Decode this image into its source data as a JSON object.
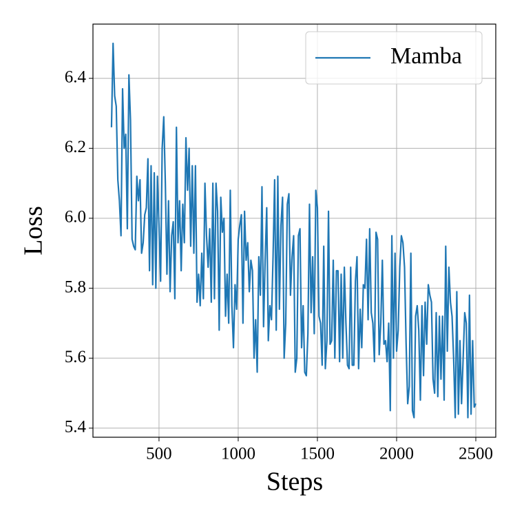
{
  "chart_data": {
    "type": "line",
    "xlabel": "Steps",
    "ylabel": "Loss",
    "x": [
      200,
      210,
      220,
      230,
      240,
      250,
      260,
      270,
      280,
      290,
      300,
      310,
      320,
      330,
      340,
      350,
      360,
      370,
      380,
      390,
      400,
      410,
      420,
      430,
      440,
      450,
      460,
      470,
      480,
      490,
      500,
      510,
      520,
      530,
      540,
      550,
      560,
      570,
      580,
      590,
      600,
      610,
      620,
      630,
      640,
      650,
      660,
      670,
      680,
      690,
      700,
      710,
      720,
      730,
      740,
      750,
      760,
      770,
      780,
      790,
      800,
      810,
      820,
      830,
      840,
      850,
      860,
      870,
      880,
      890,
      900,
      910,
      920,
      930,
      940,
      950,
      960,
      970,
      980,
      990,
      1000,
      1010,
      1020,
      1030,
      1040,
      1050,
      1060,
      1070,
      1080,
      1090,
      1100,
      1110,
      1120,
      1130,
      1140,
      1150,
      1160,
      1170,
      1180,
      1190,
      1200,
      1210,
      1220,
      1230,
      1240,
      1250,
      1260,
      1270,
      1280,
      1290,
      1300,
      1310,
      1320,
      1330,
      1340,
      1350,
      1360,
      1370,
      1380,
      1390,
      1400,
      1410,
      1420,
      1430,
      1440,
      1450,
      1460,
      1470,
      1480,
      1490,
      1500,
      1510,
      1520,
      1530,
      1540,
      1550,
      1560,
      1570,
      1580,
      1590,
      1600,
      1610,
      1620,
      1630,
      1640,
      1650,
      1660,
      1670,
      1680,
      1690,
      1700,
      1710,
      1720,
      1730,
      1740,
      1750,
      1760,
      1770,
      1780,
      1790,
      1800,
      1810,
      1820,
      1830,
      1840,
      1850,
      1860,
      1870,
      1880,
      1890,
      1900,
      1910,
      1920,
      1930,
      1940,
      1950,
      1960,
      1970,
      1980,
      1990,
      2000,
      2010,
      2020,
      2030,
      2040,
      2050,
      2060,
      2070,
      2080,
      2090,
      2100,
      2110,
      2120,
      2130,
      2140,
      2150,
      2160,
      2170,
      2180,
      2190,
      2200,
      2210,
      2220,
      2230,
      2240,
      2250,
      2260,
      2270,
      2280,
      2290,
      2300,
      2310,
      2320,
      2330,
      2340,
      2350,
      2360,
      2370,
      2380,
      2390,
      2400,
      2410,
      2420,
      2430,
      2440,
      2450,
      2460,
      2470,
      2480,
      2490,
      2500
    ],
    "series": [
      {
        "name": "Mamba",
        "color": "#1f77b4",
        "values": [
          6.26,
          6.5,
          6.35,
          6.32,
          6.11,
          6.05,
          5.95,
          6.37,
          6.2,
          6.24,
          5.97,
          6.41,
          6.28,
          5.94,
          5.92,
          5.91,
          6.12,
          6.05,
          6.11,
          5.9,
          5.93,
          6.01,
          6.03,
          6.17,
          5.85,
          6.15,
          5.81,
          6.13,
          5.8,
          6.12,
          5.98,
          5.82,
          6.2,
          6.29,
          6.1,
          5.84,
          6.05,
          5.79,
          5.95,
          5.99,
          5.77,
          6.26,
          5.93,
          6.05,
          5.85,
          6.04,
          5.93,
          6.23,
          6.08,
          6.2,
          5.92,
          6.15,
          5.9,
          6.15,
          5.76,
          5.84,
          5.75,
          5.9,
          5.77,
          6.1,
          5.95,
          5.86,
          5.97,
          5.76,
          6.1,
          5.77,
          6.1,
          6.02,
          5.68,
          6.06,
          5.96,
          6.0,
          5.72,
          5.84,
          5.7,
          6.08,
          5.75,
          5.63,
          5.81,
          5.74,
          5.94,
          5.98,
          6.01,
          5.7,
          6.02,
          5.88,
          5.93,
          5.79,
          5.88,
          5.85,
          5.6,
          5.71,
          5.56,
          5.89,
          5.78,
          6.09,
          5.69,
          5.88,
          6.03,
          5.65,
          5.75,
          5.71,
          5.89,
          6.11,
          5.68,
          6.12,
          5.74,
          5.98,
          6.06,
          5.6,
          5.7,
          6.04,
          6.07,
          5.78,
          5.89,
          5.95,
          5.56,
          5.6,
          5.95,
          5.97,
          5.63,
          5.75,
          5.56,
          5.55,
          5.67,
          6.04,
          5.73,
          5.89,
          5.67,
          6.08,
          6.03,
          5.72,
          5.7,
          5.58,
          5.92,
          5.57,
          5.65,
          6.02,
          5.64,
          5.65,
          5.88,
          5.6,
          5.85,
          5.85,
          5.59,
          5.84,
          5.6,
          5.86,
          5.7,
          5.58,
          5.57,
          5.86,
          5.58,
          5.58,
          5.82,
          5.89,
          5.57,
          5.74,
          5.63,
          5.81,
          5.8,
          5.94,
          5.71,
          5.97,
          5.73,
          5.7,
          5.59,
          5.96,
          5.94,
          5.61,
          5.7,
          5.88,
          5.64,
          5.65,
          5.59,
          5.7,
          5.45,
          5.95,
          5.6,
          5.9,
          5.62,
          5.68,
          5.86,
          5.95,
          5.93,
          5.86,
          5.64,
          5.47,
          5.52,
          5.9,
          5.45,
          5.43,
          5.72,
          5.75,
          5.68,
          5.48,
          5.75,
          5.55,
          5.76,
          5.64,
          5.81,
          5.78,
          5.76,
          5.54,
          5.5,
          5.73,
          5.49,
          5.72,
          5.54,
          5.72,
          5.48,
          5.92,
          5.62,
          5.86,
          5.76,
          5.72,
          5.6,
          5.43,
          5.79,
          5.44,
          5.65,
          5.47,
          5.6,
          5.73,
          5.7,
          5.43,
          5.78,
          5.44,
          5.65,
          5.46,
          5.47
        ]
      }
    ],
    "xlim": [
      83,
      2626
    ],
    "xticks": [
      500,
      1000,
      1500,
      2000,
      2500
    ],
    "ylim": [
      5.374,
      6.555
    ],
    "yticks": [
      5.4,
      5.6,
      5.8,
      {
        "value": 6,
        "label": "6.0"
      },
      6.2,
      6.4
    ],
    "grid": true,
    "legend": "upper right"
  }
}
